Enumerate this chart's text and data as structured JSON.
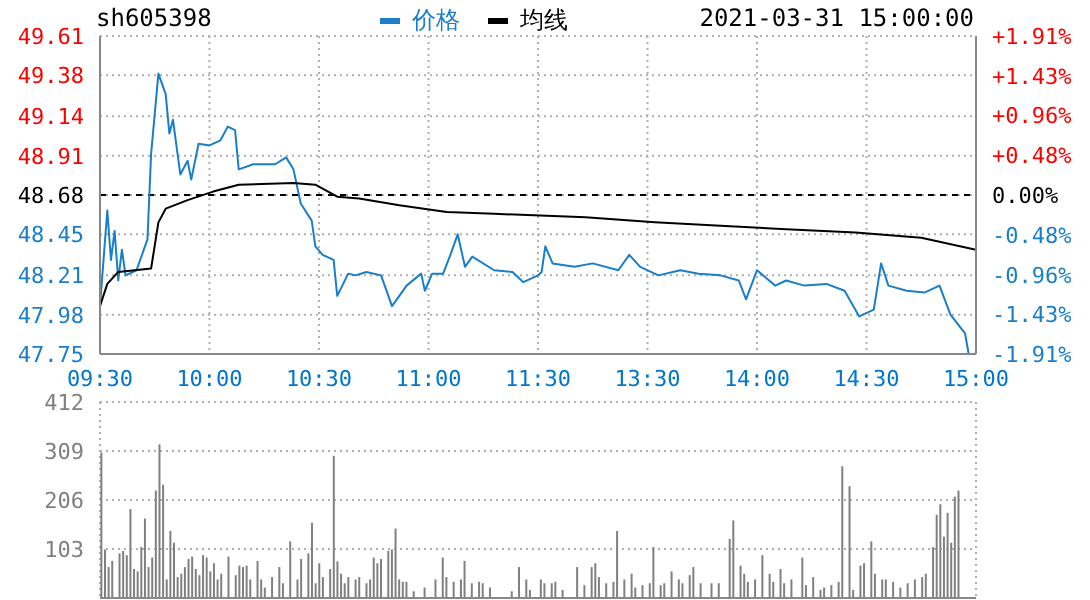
{
  "chart_data": [
    {
      "type": "line",
      "title": "sh605398",
      "subtitle": "2021-03-31 15:00:00",
      "legend": "top",
      "grid": true,
      "categories": [
        "09:30",
        null,
        null,
        null,
        null,
        null,
        null,
        null,
        null,
        null,
        null,
        null,
        null,
        null,
        null,
        null,
        null,
        null,
        null,
        null,
        null,
        null,
        null,
        null,
        null,
        null,
        null,
        null,
        null,
        null,
        "10:00",
        null,
        null,
        null,
        null,
        null,
        null,
        null,
        null,
        null,
        null,
        null,
        null,
        null,
        null,
        null,
        null,
        null,
        null,
        null,
        null,
        null,
        null,
        null,
        null,
        null,
        null,
        null,
        null,
        null,
        "10:30",
        null,
        null,
        null,
        null,
        null,
        null,
        null,
        null,
        null,
        null,
        null,
        null,
        null,
        null,
        null,
        null,
        null,
        null,
        null,
        null,
        null,
        null,
        null,
        null,
        null,
        null,
        null,
        null,
        null,
        "11:00",
        null,
        null,
        null,
        null,
        null,
        null,
        null,
        null,
        null,
        null,
        null,
        null,
        null,
        null,
        null,
        null,
        null,
        null,
        null,
        null,
        null,
        null,
        null,
        null,
        null,
        null,
        null,
        null,
        null,
        "11:30",
        null,
        null,
        null,
        null,
        null,
        null,
        null,
        null,
        null,
        null,
        null,
        null,
        null,
        null,
        null,
        null,
        null,
        null,
        null,
        null,
        null,
        null,
        null,
        null,
        null,
        null,
        null,
        null,
        null,
        "13:30",
        null,
        null,
        null,
        null,
        null,
        null,
        null,
        null,
        null,
        null,
        null,
        null,
        null,
        null,
        null,
        null,
        null,
        null,
        null,
        null,
        null,
        null,
        null,
        null,
        null,
        null,
        null,
        null,
        null,
        "14:00",
        null,
        null,
        null,
        null,
        null,
        null,
        null,
        null,
        null,
        null,
        null,
        null,
        null,
        null,
        null,
        null,
        null,
        null,
        null,
        null,
        null,
        null,
        null,
        null,
        null,
        null,
        null,
        null,
        null,
        "14:30",
        null,
        null,
        null,
        null,
        null,
        null,
        null,
        null,
        null,
        null,
        null,
        null,
        null,
        null,
        null,
        null,
        null,
        null,
        null,
        null,
        null,
        null,
        null,
        null,
        null,
        null,
        null,
        null,
        null,
        "15:00"
      ],
      "ylim": [
        47.75,
        49.61
      ],
      "yticks": [
        47.75,
        47.98,
        48.21,
        48.45,
        48.68,
        48.91,
        49.14,
        49.38,
        49.61
      ],
      "y2lim": [
        -1.91,
        1.91
      ],
      "y2ticks": [
        {
          "value": -1.91,
          "label": "-1.91%"
        },
        {
          "value": -1.43,
          "label": "-1.43%"
        },
        {
          "value": -0.96,
          "label": "-0.96%"
        },
        {
          "value": -0.48,
          "label": "-0.48%"
        },
        {
          "value": 0,
          "label": "0.00%"
        },
        {
          "value": 0.48,
          "label": "+0.48%"
        },
        {
          "value": 0.96,
          "label": "+0.96%"
        },
        {
          "value": 1.43,
          "label": "+1.43%"
        },
        {
          "value": 1.91,
          "label": "+1.91%"
        }
      ],
      "ref_lines": [
        {
          "axis": "y",
          "value": 48.68,
          "color": "#000000",
          "line_style": "dashed"
        }
      ],
      "series": [
        {
          "name": "价格",
          "color": "#1a7fc9",
          "values": [
            48.03,
            null,
            48.59,
            48.3,
            48.47,
            48.18,
            48.36,
            48.21,
            null,
            null,
            48.24,
            null,
            null,
            48.42,
            48.92,
            null,
            49.39,
            null,
            49.27,
            49.04,
            49.12,
            null,
            48.8,
            null,
            48.88,
            48.77,
            null,
            48.98,
            null,
            null,
            48.97,
            null,
            null,
            49.0,
            null,
            49.08,
            null,
            49.06,
            48.83,
            null,
            null,
            null,
            48.86,
            null,
            null,
            null,
            null,
            null,
            48.86,
            null,
            null,
            48.9,
            null,
            48.83,
            null,
            48.63,
            null,
            null,
            48.53,
            48.38,
            null,
            48.33,
            null,
            null,
            48.3,
            48.09,
            null,
            null,
            48.22,
            null,
            48.21,
            null,
            null,
            48.23,
            null,
            null,
            null,
            48.21,
            null,
            null,
            48.03,
            null,
            null,
            null,
            48.15,
            null,
            null,
            null,
            48.22,
            48.12,
            null,
            48.22,
            null,
            null,
            48.22,
            null,
            48.33,
            null,
            48.45,
            null,
            48.26,
            null,
            48.32,
            null,
            null,
            null,
            null,
            null,
            48.24,
            null,
            null,
            null,
            null,
            48.23,
            null,
            null,
            48.17,
            null,
            null,
            null,
            48.21,
            48.23,
            48.38,
            null,
            48.28,
            null,
            null,
            null,
            null,
            null,
            48.26,
            null,
            null,
            null,
            null,
            48.28,
            null,
            null,
            null,
            null,
            null,
            null,
            48.24,
            null,
            null,
            48.33,
            null,
            null,
            48.26,
            null,
            null,
            null,
            null,
            48.21,
            null,
            null,
            null,
            null,
            null,
            48.24,
            null,
            null,
            null,
            null,
            48.22,
            null,
            null,
            null,
            null,
            null,
            48.21,
            null,
            null,
            null,
            null,
            48.18,
            null,
            48.07,
            null,
            null,
            48.24,
            null,
            null,
            null,
            null,
            48.15,
            null,
            null,
            48.18,
            null,
            null,
            null,
            null,
            48.15,
            null,
            null,
            null,
            null,
            null,
            48.16,
            null,
            null,
            null,
            null,
            48.12,
            null,
            null,
            null,
            47.97,
            null,
            null,
            null,
            48.01,
            null,
            48.28,
            null,
            48.15,
            null,
            null,
            null,
            null,
            48.12,
            null,
            null,
            null,
            null,
            48.11,
            null,
            null,
            null,
            48.15,
            null,
            null,
            47.98,
            null,
            null,
            null,
            47.87,
            47.75,
            null,
            47.75
          ]
        },
        {
          "name": "均线",
          "color": "#000000",
          "values": [
            48.03,
            null,
            48.16,
            null,
            null,
            48.23,
            null,
            null,
            null,
            null,
            null,
            null,
            null,
            null,
            48.25,
            null,
            48.52,
            null,
            48.6,
            null,
            null,
            null,
            null,
            null,
            48.65,
            null,
            null,
            null,
            null,
            null,
            null,
            48.7,
            null,
            null,
            null,
            null,
            null,
            null,
            48.74,
            null,
            null,
            null,
            null,
            null,
            null,
            null,
            null,
            null,
            null,
            null,
            null,
            null,
            null,
            48.75,
            null,
            null,
            null,
            null,
            null,
            48.74,
            null,
            null,
            null,
            null,
            null,
            48.67,
            null,
            null,
            null,
            null,
            null,
            48.66,
            null,
            null,
            null,
            null,
            null,
            null,
            null,
            null,
            null,
            null,
            48.62,
            null,
            null,
            null,
            null,
            null,
            null,
            null,
            null,
            null,
            null,
            null,
            null,
            48.58,
            null,
            null,
            null,
            null,
            null,
            null,
            null,
            null,
            null,
            null,
            null,
            null,
            48.57,
            null,
            null,
            null,
            null,
            null,
            null,
            null,
            null,
            null,
            null,
            null,
            null,
            null,
            null,
            null,
            null,
            null,
            null,
            null,
            null,
            null,
            null,
            null,
            null,
            48.55,
            null,
            null,
            null,
            null,
            null,
            null,
            null,
            null,
            null,
            null,
            null,
            null,
            null,
            null,
            null,
            null,
            null,
            null,
            48.52,
            null,
            null,
            null,
            null,
            null,
            null,
            null,
            null,
            null,
            null,
            null,
            null,
            null,
            null,
            null,
            null,
            null,
            48.5,
            null,
            null,
            null,
            null,
            null,
            null,
            null,
            null,
            null,
            null,
            null,
            null,
            null,
            null,
            null,
            null,
            null,
            48.48,
            null,
            null,
            null,
            null,
            null,
            null,
            null,
            null,
            null,
            null,
            null,
            null,
            null,
            null,
            null,
            null,
            null,
            null,
            48.46,
            null,
            null,
            null,
            null,
            null,
            null,
            null,
            null,
            null,
            null,
            null,
            null,
            null,
            null,
            null,
            null,
            null,
            48.43,
            null,
            null,
            null,
            null,
            null,
            null,
            null,
            null,
            null,
            null,
            null,
            null,
            null,
            null,
            48.36
          ]
        }
      ]
    },
    {
      "type": "bar",
      "grid": true,
      "tick_labels": "y",
      "categories": [
        null,
        null,
        null,
        null,
        null,
        null,
        null,
        null,
        null,
        null,
        null,
        null,
        null,
        null,
        null,
        null,
        null,
        null,
        null,
        null,
        null,
        null,
        null,
        null,
        null,
        null,
        null,
        null,
        null,
        null,
        null,
        null,
        null,
        null,
        null,
        null,
        null,
        null,
        null,
        null,
        null,
        null,
        null,
        null,
        null,
        null,
        null,
        null,
        null,
        null,
        null,
        null,
        null,
        null,
        null,
        null,
        null,
        null,
        null,
        null,
        null,
        null,
        null,
        null,
        null,
        null,
        null,
        null,
        null,
        null,
        null,
        null,
        null,
        null,
        null,
        null,
        null,
        null,
        null,
        null,
        null,
        null,
        null,
        null,
        null,
        null,
        null,
        null,
        null,
        null,
        null,
        null,
        null,
        null,
        null,
        null,
        null,
        null,
        null,
        null,
        null,
        null,
        null,
        null,
        null,
        null,
        null,
        null,
        null,
        null,
        null,
        null,
        null,
        null,
        null,
        null,
        null,
        null,
        null,
        null,
        null,
        null,
        null,
        null,
        null,
        null,
        null,
        null,
        null,
        null,
        null,
        null,
        null,
        null,
        null,
        null,
        null,
        null,
        null,
        null,
        null,
        null,
        null,
        null,
        null,
        null,
        null,
        null,
        null,
        null,
        null,
        null,
        null,
        null,
        null,
        null,
        null,
        null,
        null,
        null,
        null,
        null,
        null,
        null,
        null,
        null,
        null,
        null,
        null,
        null,
        null,
        null,
        null,
        null,
        null,
        null,
        null,
        null,
        null,
        null,
        null,
        null,
        null,
        null,
        null,
        null,
        null,
        null,
        null,
        null,
        null,
        null,
        null,
        null,
        null,
        null,
        null,
        null,
        null,
        null,
        null,
        null,
        null,
        null,
        null,
        null,
        null,
        null,
        null,
        null,
        null,
        null,
        null,
        null,
        null,
        null,
        null,
        null,
        null,
        null,
        null,
        null,
        null,
        null,
        null,
        null,
        null,
        null,
        null,
        null,
        null,
        null,
        null,
        null,
        null,
        null,
        null,
        null,
        null,
        null,
        null
      ],
      "ylim": [
        0,
        412
      ],
      "yticks": [
        103,
        206,
        309,
        412
      ],
      "series": [
        {
          "color": "#808080",
          "values": [
            306,
            102,
            65,
            78,
            null,
            94,
            99,
            90,
            187,
            61,
            56,
            107,
            167,
            65,
            85,
            226,
            323,
            238,
            39,
            141,
            116,
            44,
            51,
            65,
            82,
            87,
            61,
            48,
            90,
            85,
            56,
            73,
            39,
            51,
            null,
            87,
            null,
            48,
            68,
            65,
            68,
            39,
            null,
            78,
            39,
            22,
            null,
            44,
            null,
            65,
            31,
            null,
            119,
            null,
            39,
            82,
            null,
            94,
            158,
            31,
            73,
            44,
            null,
            61,
            299,
            77,
            51,
            31,
            44,
            null,
            39,
            44,
            null,
            31,
            39,
            85,
            73,
            82,
            null,
            99,
            102,
            146,
            39,
            34,
            34,
            null,
            14,
            null,
            null,
            22,
            null,
            null,
            39,
            null,
            85,
            44,
            null,
            34,
            null,
            39,
            78,
            null,
            31,
            null,
            34,
            31,
            null,
            22,
            null,
            null,
            null,
            null,
            null,
            14,
            null,
            65,
            null,
            39,
            17,
            null,
            null,
            39,
            31,
            null,
            31,
            34,
            null,
            17,
            null,
            null,
            null,
            65,
            null,
            27,
            null,
            65,
            73,
            44,
            null,
            31,
            null,
            34,
            141,
            null,
            39,
            null,
            51,
            22,
            null,
            27,
            null,
            31,
            107,
            null,
            27,
            31,
            null,
            56,
            null,
            39,
            31,
            null,
            48,
            65,
            null,
            31,
            null,
            null,
            31,
            null,
            31,
            null,
            null,
            124,
            163,
            null,
            68,
            51,
            34,
            null,
            39,
            null,
            90,
            null,
            51,
            34,
            null,
            61,
            31,
            null,
            39,
            null,
            null,
            85,
            27,
            null,
            44,
            null,
            17,
            22,
            null,
            27,
            null,
            34,
            277,
            null,
            235,
            17,
            null,
            68,
            73,
            null,
            119,
            51,
            null,
            39,
            39,
            null,
            34,
            null,
            22,
            null,
            31,
            null,
            39,
            null,
            44,
            51,
            null,
            107,
            175,
            197,
            129,
            179,
            116,
            213,
            226,
            null,
            null,
            null,
            null
          ]
        }
      ]
    }
  ]
}
